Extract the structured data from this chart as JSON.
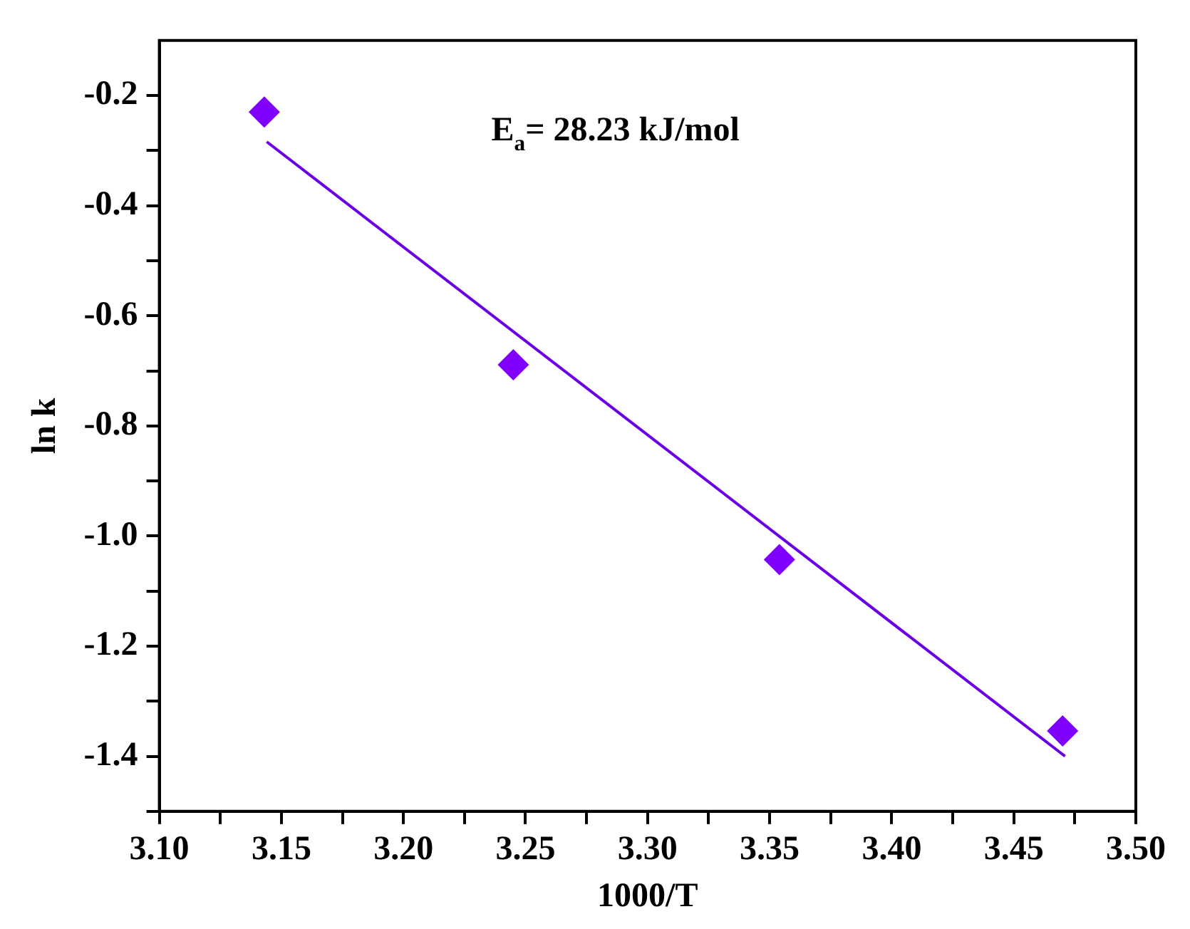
{
  "chart_data": {
    "type": "scatter",
    "xlabel": "1000/T",
    "ylabel": "ln k",
    "annotations": [
      "E$_{a}$= 28.23 kJ/mol"
    ],
    "series": [
      {
        "color": "#7f00ff",
        "marker": "diamond",
        "x": [
          3.143,
          3.245,
          3.354,
          3.47
        ],
        "values": [
          -0.23,
          -0.689,
          -1.043,
          -1.354
        ]
      },
      {
        "type": "line",
        "color": "#6a00e6",
        "marker": "none",
        "line_style": "solid",
        "x": [
          3.144,
          3.471
        ],
        "values": [
          -0.284,
          -1.4
        ]
      }
    ],
    "xlim": [
      3.1,
      3.5
    ],
    "xticks": [
      {
        "value": 3.1,
        "label": "3.10"
      },
      {
        "value": 3.125,
        "label": null
      },
      {
        "value": 3.15,
        "label": "3.15"
      },
      {
        "value": 3.175,
        "label": null
      },
      {
        "value": 3.2,
        "label": "3.20"
      },
      {
        "value": 3.225,
        "label": null
      },
      {
        "value": 3.25,
        "label": "3.25"
      },
      {
        "value": 3.275,
        "label": null
      },
      {
        "value": 3.3,
        "label": "3.30"
      },
      {
        "value": 3.325,
        "label": null
      },
      {
        "value": 3.35,
        "label": "3.35"
      },
      {
        "value": 3.375,
        "label": null
      },
      {
        "value": 3.4,
        "label": "3.40"
      },
      {
        "value": 3.425,
        "label": null
      },
      {
        "value": 3.45,
        "label": "3.45"
      },
      {
        "value": 3.475,
        "label": null
      },
      {
        "value": 3.5,
        "label": "3.50"
      }
    ],
    "ylim": [
      -1.5,
      -0.1
    ],
    "yticks": [
      {
        "value": -1.5,
        "label": null
      },
      {
        "value": -1.4,
        "label": "-1.4"
      },
      {
        "value": -1.3,
        "label": null
      },
      {
        "value": -1.2,
        "label": "-1.2"
      },
      {
        "value": -1.1,
        "label": null
      },
      {
        "value": -1.0,
        "label": "-1.0"
      },
      {
        "value": -0.9,
        "label": null
      },
      {
        "value": -0.8,
        "label": "-0.8"
      },
      {
        "value": -0.7,
        "label": null
      },
      {
        "value": -0.6,
        "label": "-0.6"
      },
      {
        "value": -0.5,
        "label": null
      },
      {
        "value": -0.4,
        "label": "-0.4"
      },
      {
        "value": -0.3,
        "label": null
      },
      {
        "value": -0.2,
        "label": "-0.2"
      }
    ],
    "grid": false,
    "legend": false
  }
}
